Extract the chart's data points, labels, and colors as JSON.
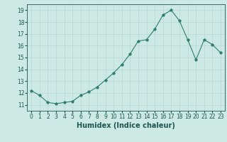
{
  "x": [
    0,
    1,
    2,
    3,
    4,
    5,
    6,
    7,
    8,
    9,
    10,
    11,
    12,
    13,
    14,
    15,
    16,
    17,
    18,
    19,
    20,
    21,
    22,
    23
  ],
  "y": [
    12.2,
    11.8,
    11.2,
    11.1,
    11.2,
    11.3,
    11.8,
    12.1,
    12.5,
    13.1,
    13.7,
    14.4,
    15.3,
    16.4,
    16.5,
    17.4,
    18.6,
    19.0,
    18.1,
    16.5,
    14.8,
    16.5,
    16.1,
    15.4
  ],
  "xlabel": "Humidex (Indice chaleur)",
  "xlim": [
    -0.5,
    23.5
  ],
  "ylim": [
    10.5,
    19.5
  ],
  "yticks": [
    11,
    12,
    13,
    14,
    15,
    16,
    17,
    18,
    19
  ],
  "xticks": [
    0,
    1,
    2,
    3,
    4,
    5,
    6,
    7,
    8,
    9,
    10,
    11,
    12,
    13,
    14,
    15,
    16,
    17,
    18,
    19,
    20,
    21,
    22,
    23
  ],
  "line_color": "#2e7d6e",
  "marker": "*",
  "bg_color": "#cce9e4",
  "grid_color": "#b8d8d3",
  "text_color": "#1e5550",
  "tick_fontsize": 5.5,
  "xlabel_fontsize": 7.0
}
